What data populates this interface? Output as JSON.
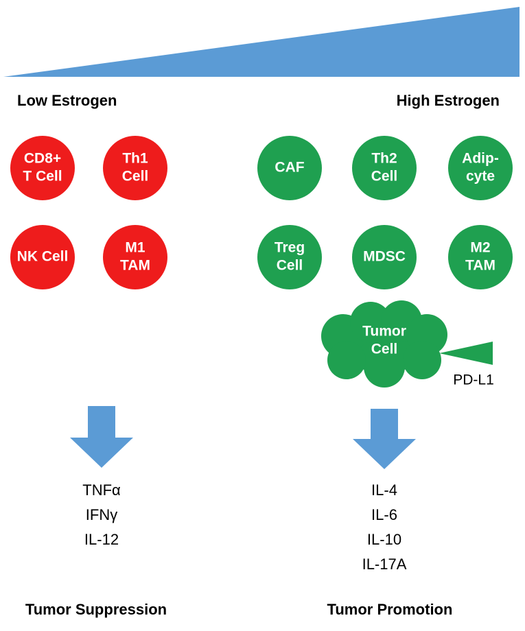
{
  "header": {
    "low": "Low Estrogen",
    "high": "High Estrogen"
  },
  "low_cells": [
    {
      "lines": [
        "CD8+",
        "T Cell"
      ]
    },
    {
      "lines": [
        "Th1",
        "Cell"
      ]
    },
    {
      "lines": [
        "NK Cell"
      ]
    },
    {
      "lines": [
        "M1",
        "TAM"
      ]
    }
  ],
  "high_cells": [
    {
      "lines": [
        "CAF"
      ]
    },
    {
      "lines": [
        "Th2",
        "Cell"
      ]
    },
    {
      "lines": [
        "Adip-",
        "cyte"
      ]
    },
    {
      "lines": [
        "Treg",
        "Cell"
      ]
    },
    {
      "lines": [
        "MDSC"
      ]
    },
    {
      "lines": [
        "M2",
        "TAM"
      ]
    }
  ],
  "tumor": {
    "lines": [
      "Tumor",
      "Cell"
    ],
    "marker": "PD-L1"
  },
  "low_cytokines": [
    "TNFα",
    "IFNγ",
    "IL-12"
  ],
  "high_cytokines": [
    "IL-4",
    "IL-6",
    "IL-10",
    "IL-17A"
  ],
  "footer": {
    "low": "Tumor Suppression",
    "high": "Tumor Promotion"
  }
}
